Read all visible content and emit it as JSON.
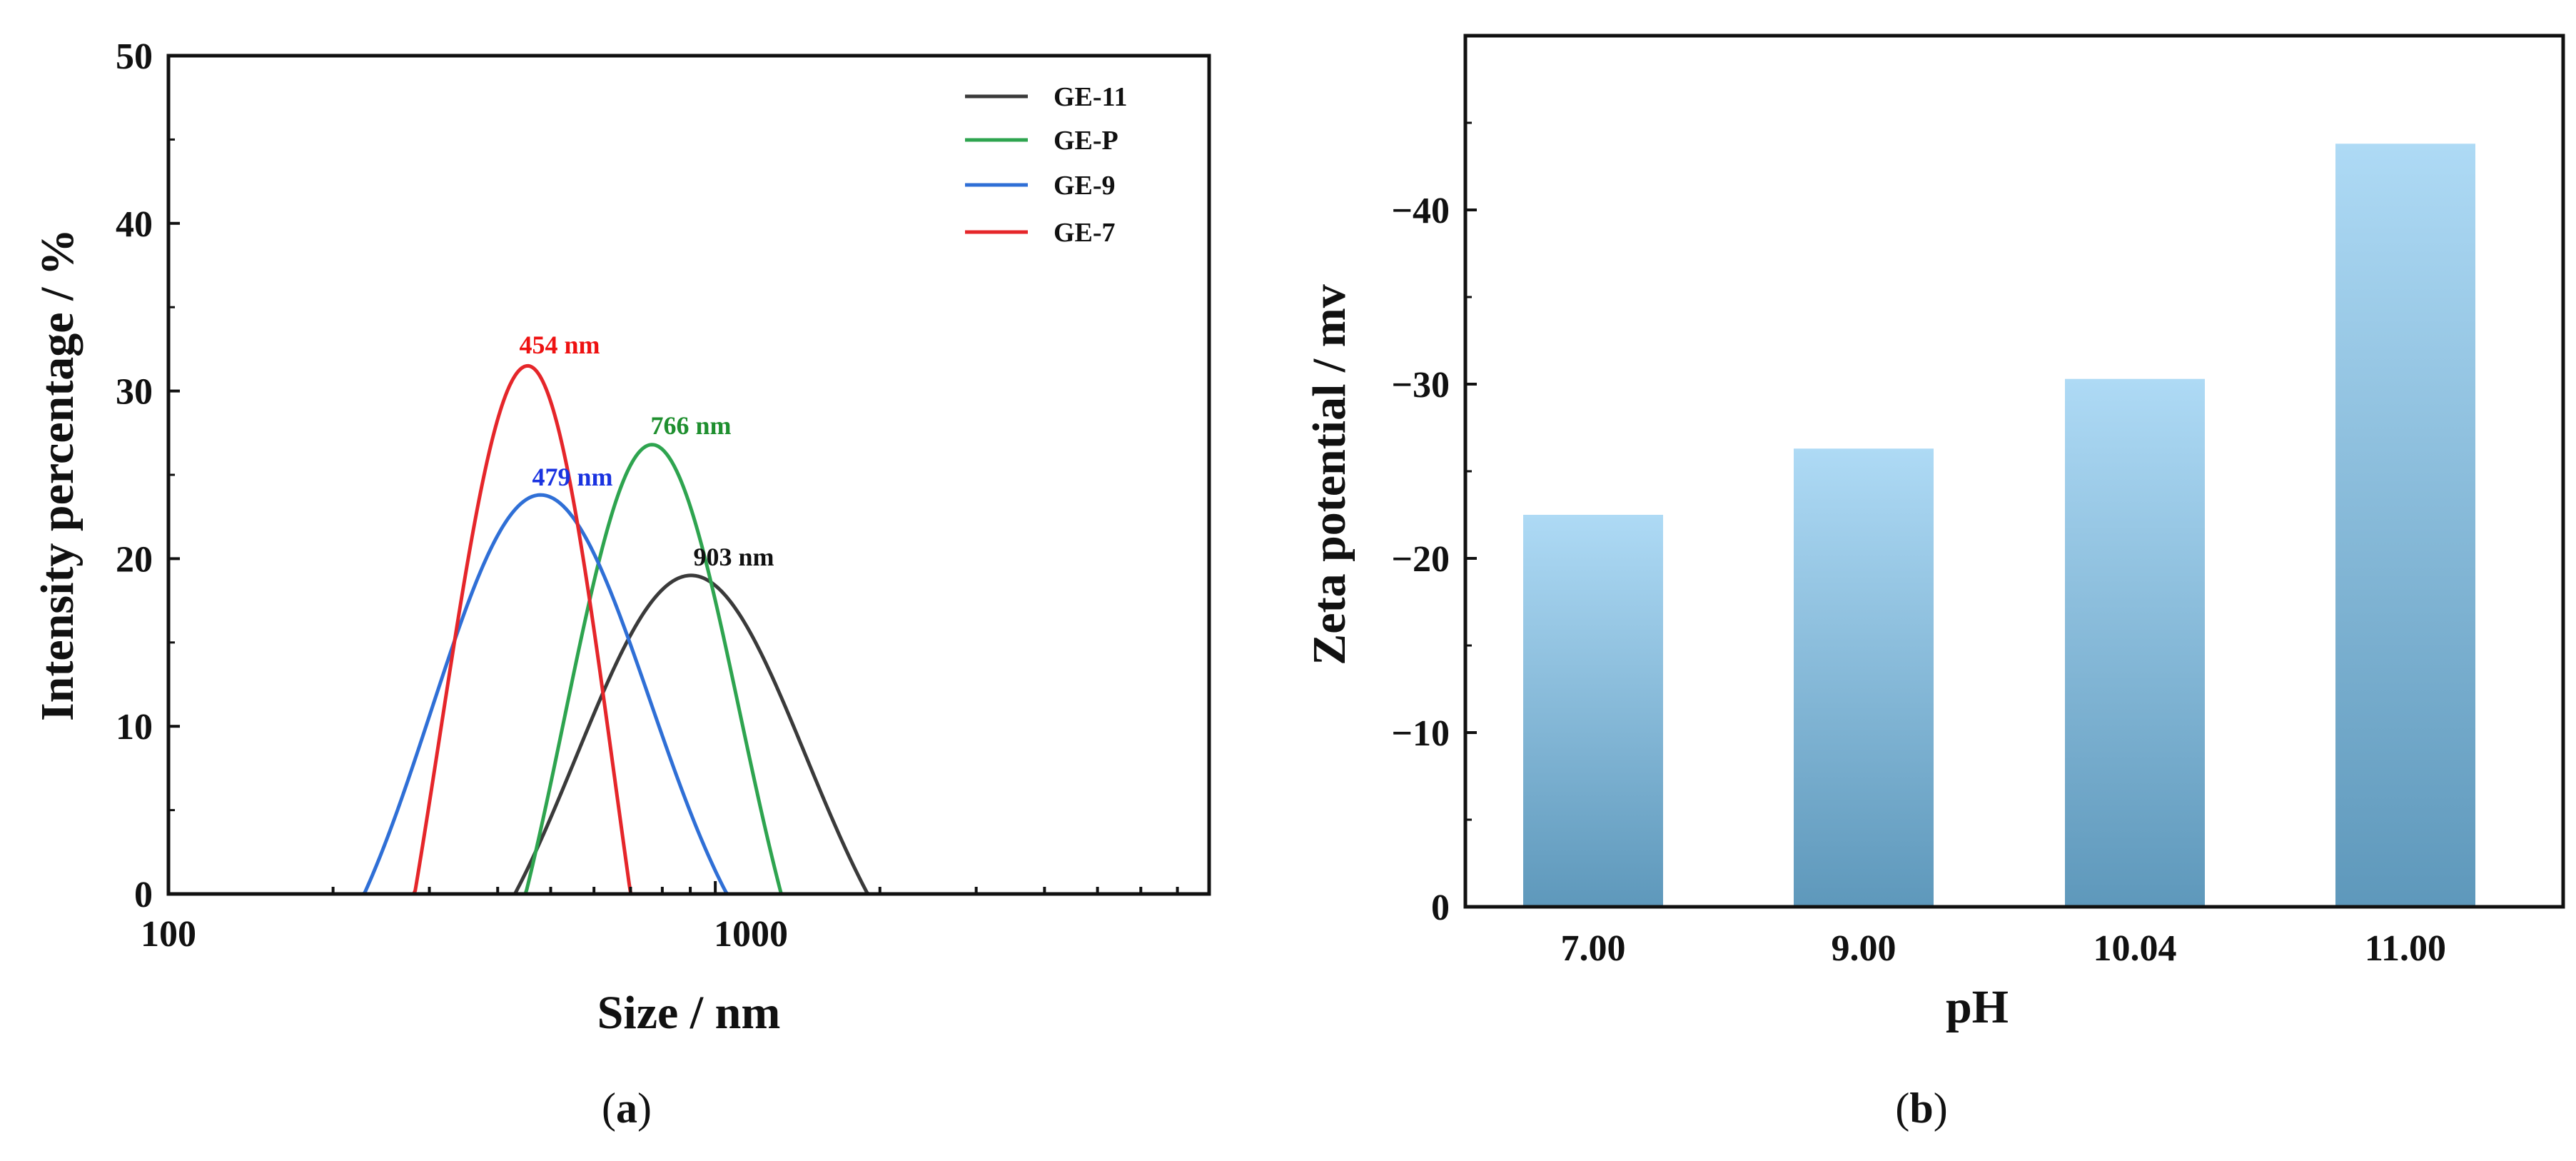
{
  "chart_data": [
    {
      "type": "line",
      "panel_label_open": "(",
      "panel_label_letter": "a",
      "panel_label_close": ")",
      "xlabel": "Size / nm",
      "ylabel": "Intensity percentage / %",
      "xscale": "log",
      "xlim": [
        100,
        8000
      ],
      "ylim": [
        0,
        50
      ],
      "x_tick_labels": [
        {
          "value": 100,
          "label": "100"
        },
        {
          "value": 1000,
          "label": "1000"
        }
      ],
      "y_ticks": [
        0,
        10,
        20,
        30,
        40,
        50
      ],
      "legend_position": "top-right",
      "series": [
        {
          "name": "GE-11",
          "color": "#3a3a3a",
          "peak": 903,
          "height": 19.0,
          "sigma": 0.21,
          "lo": 430,
          "hi": 1900,
          "peak_label": "903 nm",
          "label_color": "#111111"
        },
        {
          "name": "GE-P",
          "color": "#2ea44f",
          "peak": 766,
          "height": 26.8,
          "sigma": 0.16,
          "lo": 450,
          "hi": 1320,
          "peak_label": "766 nm",
          "label_color": "#1f8f2f"
        },
        {
          "name": "GE-9",
          "color": "#2f6fd6",
          "peak": 479,
          "height": 23.8,
          "sigma": 0.2,
          "lo": 228,
          "hi": 1050,
          "peak_label": "479 nm",
          "label_color": "#1a33e0"
        },
        {
          "name": "GE-7",
          "color": "#e5262a",
          "peak": 454,
          "height": 31.5,
          "sigma": 0.16,
          "lo": 282,
          "hi": 700,
          "peak_label": "454 nm",
          "label_color": "#ee1111"
        }
      ]
    },
    {
      "type": "bar",
      "panel_label_open": "(",
      "panel_label_letter": "b",
      "panel_label_close": ")",
      "xlabel": "pH",
      "ylabel": "Zeta potential / mv",
      "categories": [
        "7.00",
        "9.00",
        "10.04",
        "11.00"
      ],
      "values": [
        -22.5,
        -26.3,
        -30.3,
        -43.8
      ],
      "ylim": [
        0,
        -50
      ],
      "y_ticks": [
        0,
        -10,
        -20,
        -30,
        -40
      ],
      "bar_color_top": "#aedaf5",
      "bar_color_bottom": "#5e98bb"
    }
  ]
}
